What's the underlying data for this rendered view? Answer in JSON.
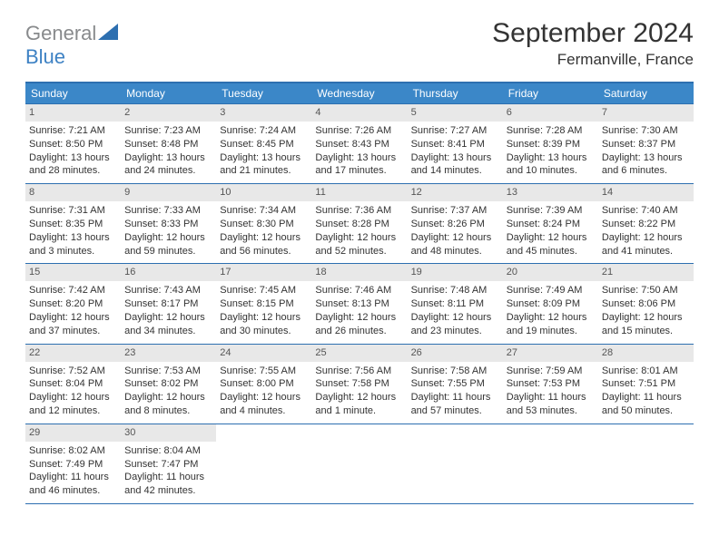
{
  "logo": {
    "word1": "General",
    "word2": "Blue"
  },
  "title": "September 2024",
  "location": "Fermanville, France",
  "day_headers": [
    "Sunday",
    "Monday",
    "Tuesday",
    "Wednesday",
    "Thursday",
    "Friday",
    "Saturday"
  ],
  "colors": {
    "header_bg": "#3b87c8",
    "border": "#2d6fb0",
    "daynum_bg": "#e8e8e8",
    "logo_gray": "#888a8c",
    "logo_blue": "#3e82c4"
  },
  "weeks": [
    [
      {
        "n": "1",
        "sr": "Sunrise: 7:21 AM",
        "ss": "Sunset: 8:50 PM",
        "dl1": "Daylight: 13 hours",
        "dl2": "and 28 minutes."
      },
      {
        "n": "2",
        "sr": "Sunrise: 7:23 AM",
        "ss": "Sunset: 8:48 PM",
        "dl1": "Daylight: 13 hours",
        "dl2": "and 24 minutes."
      },
      {
        "n": "3",
        "sr": "Sunrise: 7:24 AM",
        "ss": "Sunset: 8:45 PM",
        "dl1": "Daylight: 13 hours",
        "dl2": "and 21 minutes."
      },
      {
        "n": "4",
        "sr": "Sunrise: 7:26 AM",
        "ss": "Sunset: 8:43 PM",
        "dl1": "Daylight: 13 hours",
        "dl2": "and 17 minutes."
      },
      {
        "n": "5",
        "sr": "Sunrise: 7:27 AM",
        "ss": "Sunset: 8:41 PM",
        "dl1": "Daylight: 13 hours",
        "dl2": "and 14 minutes."
      },
      {
        "n": "6",
        "sr": "Sunrise: 7:28 AM",
        "ss": "Sunset: 8:39 PM",
        "dl1": "Daylight: 13 hours",
        "dl2": "and 10 minutes."
      },
      {
        "n": "7",
        "sr": "Sunrise: 7:30 AM",
        "ss": "Sunset: 8:37 PM",
        "dl1": "Daylight: 13 hours",
        "dl2": "and 6 minutes."
      }
    ],
    [
      {
        "n": "8",
        "sr": "Sunrise: 7:31 AM",
        "ss": "Sunset: 8:35 PM",
        "dl1": "Daylight: 13 hours",
        "dl2": "and 3 minutes."
      },
      {
        "n": "9",
        "sr": "Sunrise: 7:33 AM",
        "ss": "Sunset: 8:33 PM",
        "dl1": "Daylight: 12 hours",
        "dl2": "and 59 minutes."
      },
      {
        "n": "10",
        "sr": "Sunrise: 7:34 AM",
        "ss": "Sunset: 8:30 PM",
        "dl1": "Daylight: 12 hours",
        "dl2": "and 56 minutes."
      },
      {
        "n": "11",
        "sr": "Sunrise: 7:36 AM",
        "ss": "Sunset: 8:28 PM",
        "dl1": "Daylight: 12 hours",
        "dl2": "and 52 minutes."
      },
      {
        "n": "12",
        "sr": "Sunrise: 7:37 AM",
        "ss": "Sunset: 8:26 PM",
        "dl1": "Daylight: 12 hours",
        "dl2": "and 48 minutes."
      },
      {
        "n": "13",
        "sr": "Sunrise: 7:39 AM",
        "ss": "Sunset: 8:24 PM",
        "dl1": "Daylight: 12 hours",
        "dl2": "and 45 minutes."
      },
      {
        "n": "14",
        "sr": "Sunrise: 7:40 AM",
        "ss": "Sunset: 8:22 PM",
        "dl1": "Daylight: 12 hours",
        "dl2": "and 41 minutes."
      }
    ],
    [
      {
        "n": "15",
        "sr": "Sunrise: 7:42 AM",
        "ss": "Sunset: 8:20 PM",
        "dl1": "Daylight: 12 hours",
        "dl2": "and 37 minutes."
      },
      {
        "n": "16",
        "sr": "Sunrise: 7:43 AM",
        "ss": "Sunset: 8:17 PM",
        "dl1": "Daylight: 12 hours",
        "dl2": "and 34 minutes."
      },
      {
        "n": "17",
        "sr": "Sunrise: 7:45 AM",
        "ss": "Sunset: 8:15 PM",
        "dl1": "Daylight: 12 hours",
        "dl2": "and 30 minutes."
      },
      {
        "n": "18",
        "sr": "Sunrise: 7:46 AM",
        "ss": "Sunset: 8:13 PM",
        "dl1": "Daylight: 12 hours",
        "dl2": "and 26 minutes."
      },
      {
        "n": "19",
        "sr": "Sunrise: 7:48 AM",
        "ss": "Sunset: 8:11 PM",
        "dl1": "Daylight: 12 hours",
        "dl2": "and 23 minutes."
      },
      {
        "n": "20",
        "sr": "Sunrise: 7:49 AM",
        "ss": "Sunset: 8:09 PM",
        "dl1": "Daylight: 12 hours",
        "dl2": "and 19 minutes."
      },
      {
        "n": "21",
        "sr": "Sunrise: 7:50 AM",
        "ss": "Sunset: 8:06 PM",
        "dl1": "Daylight: 12 hours",
        "dl2": "and 15 minutes."
      }
    ],
    [
      {
        "n": "22",
        "sr": "Sunrise: 7:52 AM",
        "ss": "Sunset: 8:04 PM",
        "dl1": "Daylight: 12 hours",
        "dl2": "and 12 minutes."
      },
      {
        "n": "23",
        "sr": "Sunrise: 7:53 AM",
        "ss": "Sunset: 8:02 PM",
        "dl1": "Daylight: 12 hours",
        "dl2": "and 8 minutes."
      },
      {
        "n": "24",
        "sr": "Sunrise: 7:55 AM",
        "ss": "Sunset: 8:00 PM",
        "dl1": "Daylight: 12 hours",
        "dl2": "and 4 minutes."
      },
      {
        "n": "25",
        "sr": "Sunrise: 7:56 AM",
        "ss": "Sunset: 7:58 PM",
        "dl1": "Daylight: 12 hours",
        "dl2": "and 1 minute."
      },
      {
        "n": "26",
        "sr": "Sunrise: 7:58 AM",
        "ss": "Sunset: 7:55 PM",
        "dl1": "Daylight: 11 hours",
        "dl2": "and 57 minutes."
      },
      {
        "n": "27",
        "sr": "Sunrise: 7:59 AM",
        "ss": "Sunset: 7:53 PM",
        "dl1": "Daylight: 11 hours",
        "dl2": "and 53 minutes."
      },
      {
        "n": "28",
        "sr": "Sunrise: 8:01 AM",
        "ss": "Sunset: 7:51 PM",
        "dl1": "Daylight: 11 hours",
        "dl2": "and 50 minutes."
      }
    ],
    [
      {
        "n": "29",
        "sr": "Sunrise: 8:02 AM",
        "ss": "Sunset: 7:49 PM",
        "dl1": "Daylight: 11 hours",
        "dl2": "and 46 minutes."
      },
      {
        "n": "30",
        "sr": "Sunrise: 8:04 AM",
        "ss": "Sunset: 7:47 PM",
        "dl1": "Daylight: 11 hours",
        "dl2": "and 42 minutes."
      },
      null,
      null,
      null,
      null,
      null
    ]
  ]
}
